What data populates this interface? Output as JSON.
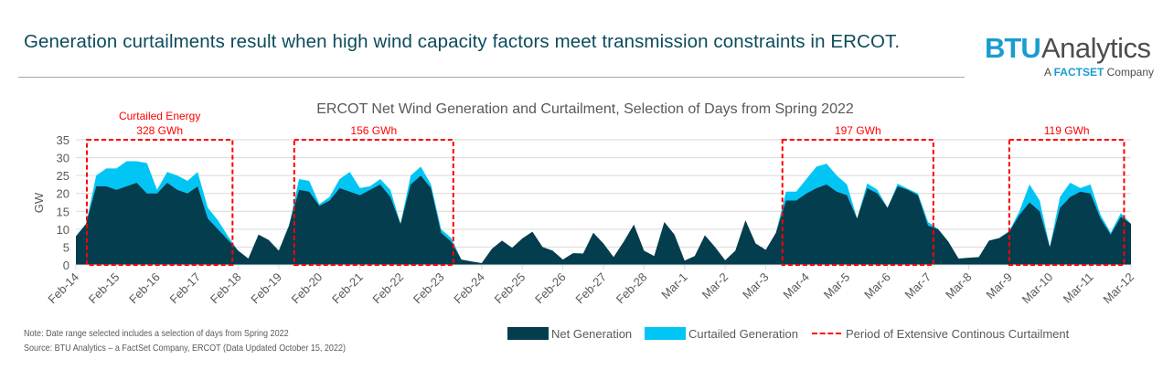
{
  "header": {
    "headline": "Generation curtailments result when high wind capacity factors meet transmission constraints in ERCOT.",
    "logo": {
      "brand": "BTU",
      "brand2": "Analytics",
      "tag_prefix": "A",
      "tag_brand": "FACTSET",
      "tag_suffix": "Company"
    }
  },
  "chart_data": {
    "type": "area",
    "stacked": true,
    "title": "ERCOT Net Wind Generation and Curtailment, Selection of Days from Spring 2022",
    "ylabel": "GW",
    "xlabel": "",
    "ylim": [
      0,
      35
    ],
    "yticks": [
      0,
      5,
      10,
      15,
      20,
      25,
      30,
      35
    ],
    "grid": "horizontal",
    "legend_position": "bottom",
    "x_start": "Feb-14",
    "interval_hours": 6,
    "xtick_labels": [
      "Feb-14",
      "Feb-15",
      "Feb-16",
      "Feb-17",
      "Feb-18",
      "Feb-19",
      "Feb-20",
      "Feb-21",
      "Feb-22",
      "Feb-23",
      "Feb-24",
      "Feb-25",
      "Feb-26",
      "Feb-27",
      "Feb-28",
      "Mar-1",
      "Mar-2",
      "Mar-3",
      "Mar-4",
      "Mar-5",
      "Mar-6",
      "Mar-7",
      "Mar-8",
      "Mar-9",
      "Mar-10",
      "Mar-11",
      "Mar-12"
    ],
    "series": [
      {
        "name": "Net Generation",
        "color": "#033d4e",
        "values": [
          8,
          11.5,
          22,
          22,
          21,
          22,
          23,
          20,
          20,
          23,
          21,
          20,
          22,
          13,
          10,
          7,
          4,
          1.8,
          8.5,
          7,
          4,
          11,
          21,
          20.5,
          16.5,
          18,
          21.5,
          20.5,
          19.5,
          21,
          22.5,
          19,
          11.5,
          22.5,
          25,
          21.5,
          9,
          6.5,
          1.5,
          1,
          0.5,
          4.5,
          6.8,
          4.8,
          7.4,
          9.3,
          5,
          4,
          1.5,
          3.3,
          3.2,
          9,
          6,
          2.2,
          6.5,
          11.3,
          4,
          2.5,
          12,
          8.5,
          1.2,
          2.5,
          8.3,
          5,
          1.3,
          4,
          12.5,
          6,
          4.2,
          9,
          18,
          18,
          20,
          21.5,
          22.5,
          20.5,
          19.5,
          13,
          21.5,
          20,
          16,
          22,
          21,
          19.5,
          11,
          10,
          6.5,
          1.8,
          2,
          2.2,
          6.8,
          7.5,
          9.3,
          14,
          17.5,
          15,
          5,
          16,
          19,
          20.5,
          20,
          13,
          8.5,
          13.5,
          11.5
        ]
      },
      {
        "name": "Curtailed Generation",
        "color": "#00c5f5",
        "values": [
          0,
          0,
          3,
          5,
          6,
          7,
          6,
          8.5,
          1,
          3,
          4,
          3.5,
          4,
          3,
          2.5,
          1,
          0,
          0,
          0,
          0,
          0,
          0,
          3,
          3,
          0.5,
          1,
          2.5,
          5.5,
          2,
          1,
          1.5,
          2,
          0,
          2.5,
          2.5,
          1,
          1,
          1,
          0,
          0,
          0,
          0,
          0,
          0,
          0,
          0,
          0,
          0,
          0,
          0,
          0,
          0,
          0,
          0,
          0,
          0,
          0,
          0,
          0,
          0,
          0,
          0,
          0,
          0,
          0,
          0,
          0,
          0,
          0,
          0,
          2.5,
          2.5,
          4,
          6,
          5.8,
          4.5,
          3,
          0,
          1.3,
          1,
          0,
          0.7,
          0.3,
          0.5,
          1,
          0,
          0,
          0,
          0,
          0,
          0,
          0,
          0.2,
          1,
          5,
          3,
          0,
          3,
          4,
          1,
          2.5,
          1,
          0.5,
          1,
          0
        ]
      }
    ],
    "annotations": [
      {
        "label_line1": "Curtailed Energy",
        "label_line2": "328 GWh",
        "start": "Feb-14 06:00",
        "end": "Feb-17 21:00",
        "start_day": 0.27,
        "end_day": 3.86
      },
      {
        "label_line1": "",
        "label_line2": "156 GWh",
        "start": "Feb-19 09:00",
        "end": "Feb-23 07:00",
        "start_day": 5.38,
        "end_day": 9.3
      },
      {
        "label_line1": "",
        "label_line2": "197 GWh",
        "start": "Mar-3 10:00",
        "end": "Mar-7 03:00",
        "start_day": 17.41,
        "end_day": 21.13
      },
      {
        "label_line1": "",
        "label_line2": "119 GWh",
        "start": "Mar-9 00:00",
        "end": "Mar-11 20:00",
        "start_day": 23.0,
        "end_day": 25.83
      }
    ],
    "annotation_color": "#ff0000"
  },
  "legend": {
    "net": "Net Generation",
    "curtailed": "Curtailed Generation",
    "period": "Period of Extensive Continous Curtailment"
  },
  "notes": {
    "note": "Note: Date range selected includes a selection of days from Spring 2022",
    "source": "Source: BTU Analytics – a FactSet Company, ERCOT (Data Updated October 15, 2022)"
  }
}
